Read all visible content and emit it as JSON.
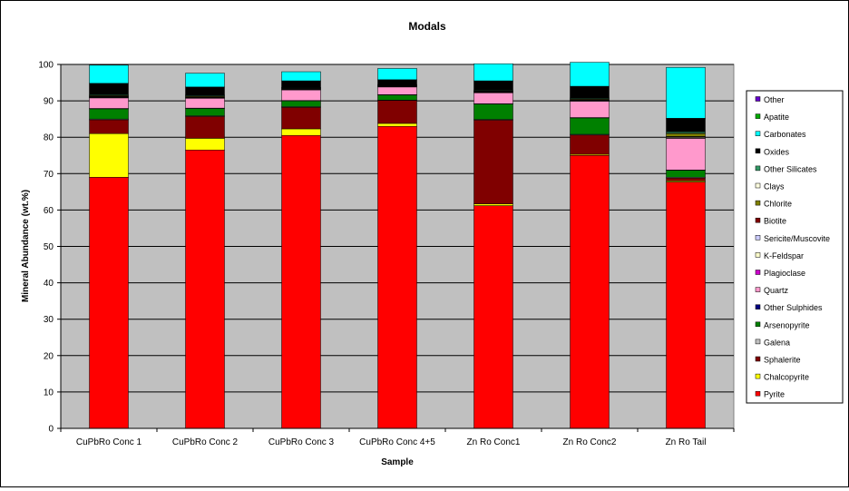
{
  "chart_data": {
    "type": "bar",
    "stacked": true,
    "title": "Modals",
    "xlabel": "Sample",
    "ylabel": "Mineral Abundance (wt.%)",
    "ylim": [
      0,
      100
    ],
    "ytick_step": 10,
    "grid": true,
    "plot_background": "#c0c0c0",
    "legend_position": "right",
    "categories": [
      "CuPbRo Conc 1",
      "CuPbRo Conc 2",
      "CuPbRo Conc 3",
      "CuPbRo Conc 4+5",
      "Zn Ro Conc1",
      "Zn Ro Conc2",
      "Zn Ro Tail"
    ],
    "series": [
      {
        "name": "Pyrite",
        "color": "#ff0000",
        "values": [
          69,
          76.5,
          80.5,
          83,
          61.2,
          75,
          67.7
        ]
      },
      {
        "name": "Chalcopyrite",
        "color": "#ffff00",
        "values": [
          12,
          3.2,
          1.8,
          0.8,
          0.5,
          0.3,
          0.3
        ]
      },
      {
        "name": "Sphalerite",
        "color": "#800000",
        "values": [
          3.8,
          6,
          5.9,
          6.3,
          23,
          5.3,
          0.8
        ]
      },
      {
        "name": "Galena",
        "color": "#c0c0c0",
        "values": [
          0.2,
          0.2,
          0.2,
          0.1,
          0.2,
          0.2,
          0.2
        ]
      },
      {
        "name": "Arsenopyrite",
        "color": "#008000",
        "values": [
          2.8,
          2,
          1.6,
          1.4,
          4.2,
          4.5,
          1.9
        ]
      },
      {
        "name": "Other Sulphides",
        "color": "#000080",
        "values": [
          0.1,
          0.1,
          0.1,
          0.1,
          0.1,
          0.1,
          0.1
        ]
      },
      {
        "name": "Quartz",
        "color": "#ff99cc",
        "values": [
          2.9,
          2.7,
          2.9,
          2.1,
          3,
          4.5,
          8.7
        ]
      },
      {
        "name": "Plagioclase",
        "color": "#cc00cc",
        "values": [
          0.1,
          0.1,
          0.1,
          0.1,
          0.1,
          0.1,
          0.1
        ]
      },
      {
        "name": "K-Feldspar",
        "color": "#ffffcc",
        "values": [
          0.1,
          0.1,
          0.1,
          0.1,
          0.1,
          0.1,
          0.2
        ]
      },
      {
        "name": "Sericite/Muscovite",
        "color": "#ccccff",
        "values": [
          0.1,
          0.1,
          0.1,
          0.1,
          0.1,
          0.1,
          0.1
        ]
      },
      {
        "name": "Biotite",
        "color": "#800000",
        "values": [
          0.1,
          0.1,
          0.1,
          0.1,
          0.1,
          0.1,
          0.1
        ]
      },
      {
        "name": "Chlorite",
        "color": "#808000",
        "values": [
          0.2,
          0.2,
          0.1,
          0.1,
          0.1,
          0.2,
          0.8
        ]
      },
      {
        "name": "Clays",
        "color": "#ffffe0",
        "values": [
          0.1,
          0.1,
          0.1,
          0.1,
          0.1,
          0.1,
          0.1
        ]
      },
      {
        "name": "Other Silicates",
        "color": "#339966",
        "values": [
          0.2,
          0.2,
          0.1,
          0.1,
          0.2,
          0.2,
          0.4
        ]
      },
      {
        "name": "Oxides",
        "color": "#000000",
        "values": [
          3.1,
          2.2,
          1.8,
          1.3,
          2.5,
          3.2,
          3.7
        ]
      },
      {
        "name": "Carbonates",
        "color": "#00ffff",
        "values": [
          5,
          3.8,
          2.5,
          3.1,
          4.7,
          6.6,
          14
        ]
      },
      {
        "name": "Apatite",
        "color": "#00aa00",
        "values": [
          0,
          0,
          0,
          0,
          0,
          0,
          0
        ]
      },
      {
        "name": "Other",
        "color": "#6600cc",
        "values": [
          0,
          0,
          0,
          0,
          0,
          0,
          0
        ]
      }
    ]
  }
}
